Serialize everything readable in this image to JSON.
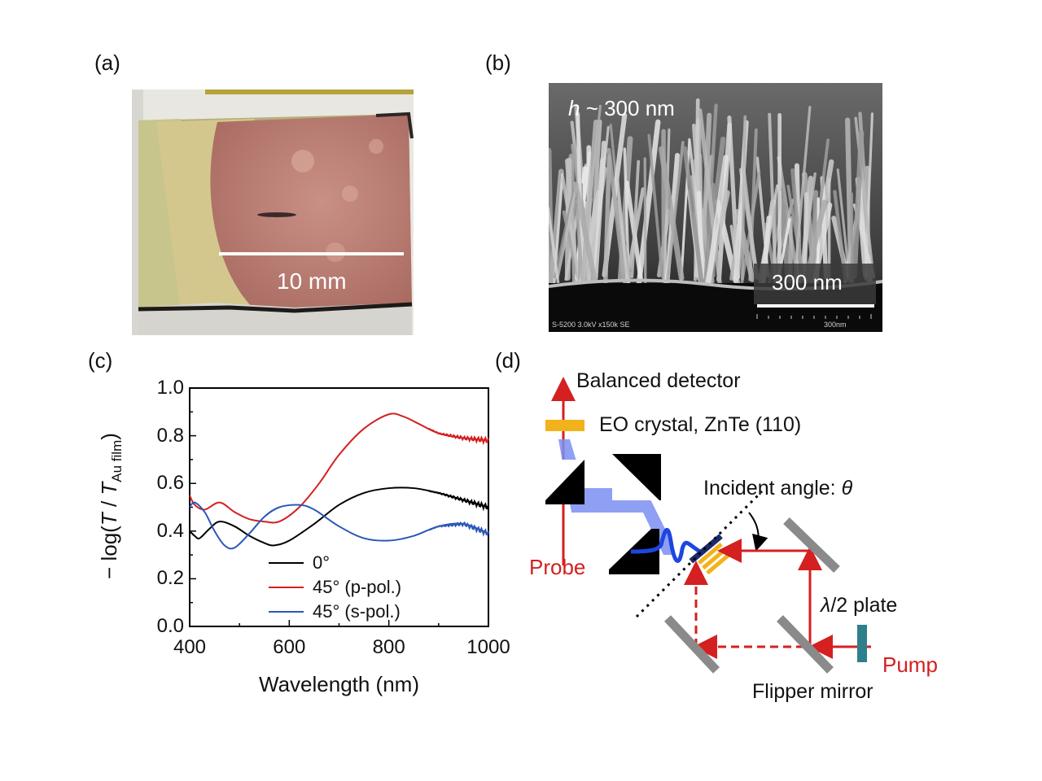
{
  "panel_labels": {
    "a": "(a)",
    "b": "(b)",
    "c": "(c)",
    "d": "(d)"
  },
  "photo": {
    "scale_label": "10 mm"
  },
  "sem": {
    "height_label_var": "h",
    "height_label_rest": " ~ 300  nm",
    "scale_label": "300 nm",
    "info_text": "S-5200 3.0kV x150k SE",
    "info_scale": "300nm"
  },
  "diagram": {
    "balanced_detector": "Balanced detector",
    "eo_crystal": "EO crystal, ZnTe (110)",
    "incident_angle": "Incident angle: ",
    "theta": "θ",
    "probe": "Probe",
    "half_wave_lambda": "λ",
    "half_wave_rest": "/2 plate",
    "pump": "Pump",
    "flipper_mirror": "Flipper mirror"
  },
  "chart_data": {
    "type": "line",
    "xlabel": "Wavelength (nm)",
    "ylabel_prefix": "− log(",
    "ylabel_T": "T",
    "ylabel_slash": " / ",
    "ylabel_T2": "T",
    "ylabel_sub": "Au film",
    "ylabel_suffix": ")",
    "xlim": [
      400,
      1000
    ],
    "ylim": [
      0.0,
      1.0
    ],
    "xticks": [
      "400",
      "600",
      "800",
      "1000"
    ],
    "yticks": [
      "0.0",
      "0.2",
      "0.4",
      "0.6",
      "0.8",
      "1.0"
    ],
    "legend_position": "bottom-center",
    "series": [
      {
        "name": "0°",
        "color": "#000000",
        "x": [
          400,
          410,
          420,
          440,
          460,
          490,
          520,
          550,
          570,
          600,
          650,
          700,
          750,
          800,
          850,
          900,
          950,
          1000
        ],
        "y": [
          0.4,
          0.38,
          0.37,
          0.41,
          0.44,
          0.42,
          0.38,
          0.35,
          0.34,
          0.36,
          0.43,
          0.51,
          0.56,
          0.58,
          0.58,
          0.56,
          0.53,
          0.5
        ]
      },
      {
        "name": "45° (p-pol.)",
        "color": "#d42020",
        "x": [
          400,
          410,
          430,
          460,
          490,
          520,
          550,
          580,
          620,
          660,
          700,
          750,
          800,
          830,
          860,
          900,
          950,
          1000
        ],
        "y": [
          0.55,
          0.51,
          0.49,
          0.52,
          0.48,
          0.45,
          0.44,
          0.44,
          0.5,
          0.6,
          0.72,
          0.83,
          0.89,
          0.88,
          0.85,
          0.81,
          0.79,
          0.78
        ]
      },
      {
        "name": "45° (s-pol.)",
        "color": "#2b58b8",
        "x": [
          400,
          410,
          430,
          450,
          470,
          490,
          520,
          550,
          580,
          620,
          650,
          700,
          750,
          800,
          850,
          900,
          950,
          1000
        ],
        "y": [
          0.5,
          0.52,
          0.48,
          0.4,
          0.34,
          0.33,
          0.39,
          0.46,
          0.5,
          0.51,
          0.49,
          0.42,
          0.37,
          0.36,
          0.38,
          0.42,
          0.43,
          0.39
        ]
      }
    ]
  }
}
